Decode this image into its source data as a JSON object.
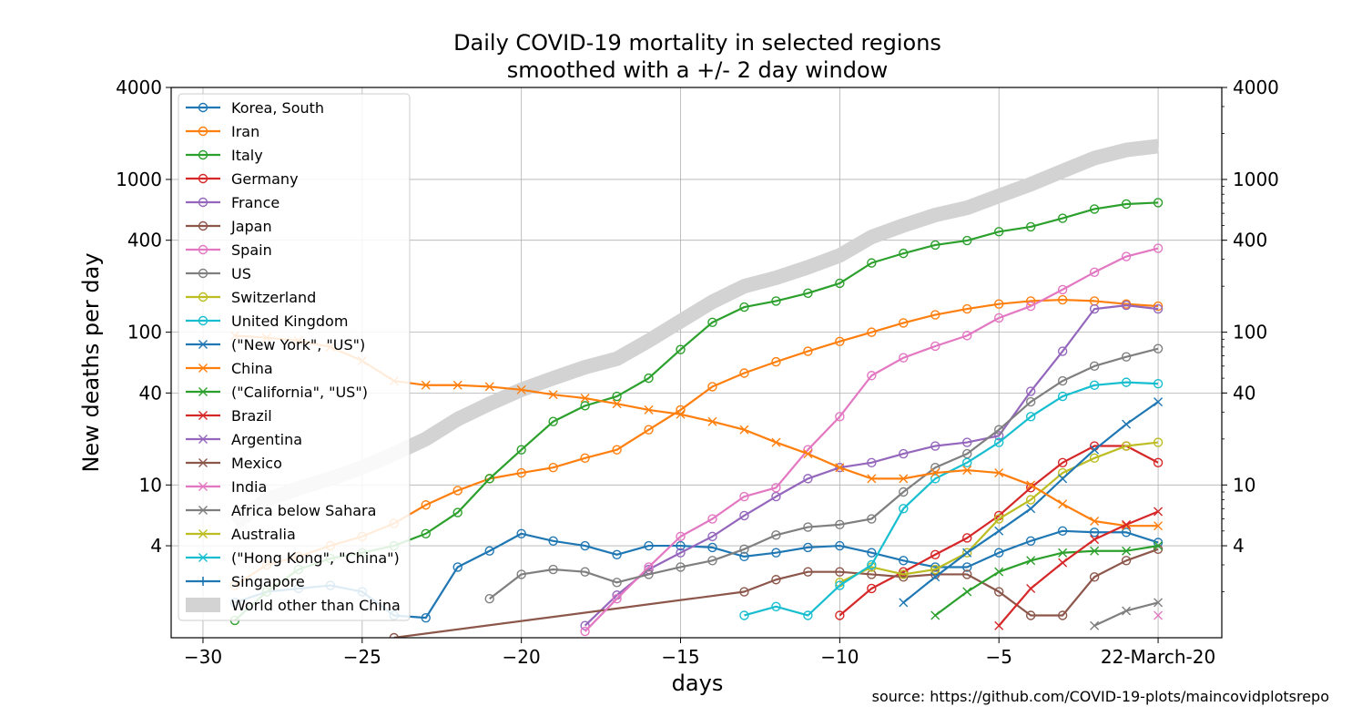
{
  "chart_data": {
    "type": "line",
    "title": "Daily COVID-19 mortality in selected regions",
    "subtitle": "smoothed with a +/- 2 day window",
    "xlabel": "days",
    "ylabel": "New deaths per day",
    "source": "source: https://github.com/COVID-19-plots/maincovidplotsrepo",
    "xlim": [
      -31,
      2
    ],
    "ylim": [
      1,
      4000
    ],
    "yscale": "log",
    "grid": true,
    "legend_placement": "upper-left",
    "x_ticks": [
      {
        "value": -30,
        "label": "−30"
      },
      {
        "value": -25,
        "label": "−25"
      },
      {
        "value": -20,
        "label": "−20"
      },
      {
        "value": -15,
        "label": "−15"
      },
      {
        "value": -10,
        "label": "−10"
      },
      {
        "value": -5,
        "label": "−5"
      },
      {
        "value": 0,
        "label": "22-March-20"
      }
    ],
    "y_ticks": [
      {
        "value": 4,
        "label": "4"
      },
      {
        "value": 10,
        "label": "10"
      },
      {
        "value": 40,
        "label": "40"
      },
      {
        "value": 100,
        "label": "100"
      },
      {
        "value": 400,
        "label": "400"
      },
      {
        "value": 1000,
        "label": "1000"
      },
      {
        "value": 4000,
        "label": "4000"
      }
    ],
    "series": [
      {
        "name": "Korea, South",
        "color": "#1f77b4",
        "marker": "circle",
        "x": [
          -29,
          -28,
          -27,
          -26,
          -25,
          -24,
          -23,
          -22,
          -21,
          -20,
          -19,
          -18,
          -17,
          -16,
          -15,
          -14,
          -13,
          -12,
          -11,
          -10,
          -9,
          -8,
          -7,
          -6,
          -5,
          -4,
          -3,
          -2,
          -1,
          0
        ],
        "y": [
          1.7,
          2.0,
          2.1,
          2.2,
          2.0,
          1.4,
          1.35,
          2.9,
          3.7,
          4.8,
          4.3,
          4.0,
          3.5,
          4.0,
          4.0,
          3.9,
          3.4,
          3.6,
          3.9,
          4.0,
          3.6,
          3.2,
          2.9,
          2.9,
          3.6,
          4.3,
          5.0,
          4.9,
          4.9,
          4.2
        ]
      },
      {
        "name": "Iran",
        "color": "#ff7f0e",
        "marker": "circle",
        "x": [
          -29,
          -28,
          -27,
          -26,
          -25,
          -24,
          -23,
          -22,
          -21,
          -20,
          -19,
          -18,
          -17,
          -16,
          -15,
          -14,
          -13,
          -12,
          -11,
          -10,
          -9,
          -8,
          -7,
          -6,
          -5,
          -4,
          -3,
          -2,
          -1,
          0
        ],
        "y": [
          2.2,
          3.0,
          3.4,
          4.0,
          4.6,
          5.6,
          7.4,
          9.2,
          11,
          12,
          13,
          15,
          17,
          23,
          31,
          44,
          54,
          64,
          75,
          87,
          100,
          115,
          130,
          142,
          153,
          160,
          163,
          160,
          153,
          148
        ]
      },
      {
        "name": "Italy",
        "color": "#2ca02c",
        "marker": "circle",
        "x": [
          -29,
          -28,
          -27,
          -26,
          -25,
          -24,
          -23,
          -22,
          -21,
          -20,
          -19,
          -18,
          -17,
          -16,
          -15,
          -14,
          -13,
          -12,
          -11,
          -10,
          -9,
          -8,
          -7,
          -6,
          -5,
          -4,
          -3,
          -2,
          -1,
          0
        ],
        "y": [
          1.3,
          2.0,
          2.8,
          3.3,
          3.6,
          4.0,
          4.8,
          6.6,
          11,
          17,
          26,
          33,
          38,
          50,
          77,
          116,
          146,
          160,
          180,
          209,
          284,
          328,
          372,
          398,
          455,
          490,
          557,
          640,
          690,
          705
        ]
      },
      {
        "name": "Germany",
        "color": "#d62728",
        "marker": "circle",
        "x": [
          -10,
          -9,
          -8,
          -7,
          -6,
          -5,
          -4,
          -3,
          -2,
          -1,
          0
        ],
        "y": [
          1.4,
          2.1,
          2.7,
          3.5,
          4.5,
          6.3,
          9.6,
          14,
          18,
          18,
          14
        ]
      },
      {
        "name": "France",
        "color": "#9467bd",
        "marker": "circle",
        "x": [
          -18,
          -17,
          -16,
          -15,
          -14,
          -13,
          -12,
          -11,
          -10,
          -9,
          -8,
          -7,
          -6,
          -5,
          -4,
          -3,
          -2,
          -1,
          0
        ],
        "y": [
          1.2,
          1.9,
          2.8,
          3.6,
          4.6,
          6.3,
          8.4,
          11,
          13,
          14,
          16,
          18,
          19,
          21,
          41,
          75,
          142,
          150,
          142
        ]
      },
      {
        "name": "Japan",
        "color": "#8c564b",
        "marker": "circle",
        "x": [
          -24,
          -13,
          -12,
          -11,
          -10,
          -9,
          -8,
          -7,
          -6,
          -5,
          -4,
          -3,
          -2,
          -1,
          0
        ],
        "y": [
          1.0,
          2.0,
          2.4,
          2.7,
          2.7,
          2.6,
          2.5,
          2.6,
          2.6,
          2.0,
          1.4,
          1.4,
          2.5,
          3.2,
          3.8
        ]
      },
      {
        "name": "Spain",
        "color": "#e377c2",
        "marker": "circle",
        "x": [
          -18,
          -17,
          -16,
          -15,
          -14,
          -13,
          -12,
          -11,
          -10,
          -9,
          -8,
          -7,
          -6,
          -5,
          -4,
          -3,
          -2,
          -1,
          0
        ],
        "y": [
          1.1,
          1.8,
          2.9,
          4.6,
          6.0,
          8.4,
          9.6,
          17,
          28,
          52,
          68,
          81,
          95,
          124,
          148,
          190,
          247,
          313,
          354
        ]
      },
      {
        "name": "US",
        "color": "#7f7f7f",
        "marker": "circle",
        "x": [
          -21,
          -20,
          -19,
          -18,
          -17,
          -16,
          -15,
          -14,
          -13,
          -12,
          -11,
          -10,
          -9,
          -8,
          -7,
          -6,
          -5,
          -4,
          -3,
          -2,
          -1,
          0
        ],
        "y": [
          1.8,
          2.6,
          2.8,
          2.7,
          2.3,
          2.6,
          2.9,
          3.2,
          3.8,
          4.7,
          5.3,
          5.5,
          6.0,
          9.0,
          13,
          16,
          23,
          35,
          48,
          60,
          69,
          78
        ]
      },
      {
        "name": "Switzerland",
        "color": "#bcbd22",
        "marker": "circle",
        "x": [
          -10,
          -9,
          -8,
          -7,
          -6,
          -5,
          -4,
          -3,
          -2,
          -1,
          0
        ],
        "y": [
          2.3,
          2.9,
          2.6,
          2.8,
          3.6,
          6,
          8,
          12,
          15,
          18,
          19
        ]
      },
      {
        "name": "United Kingdom",
        "color": "#17becf",
        "marker": "circle",
        "x": [
          -13,
          -12,
          -11,
          -10,
          -9,
          -8,
          -7,
          -6,
          -5,
          -4,
          -3,
          -2,
          -1,
          0
        ],
        "y": [
          1.4,
          1.6,
          1.4,
          2.2,
          3.0,
          7.0,
          11,
          14,
          19,
          28,
          38,
          45,
          47,
          46
        ]
      },
      {
        "name": "(\"New York\", \"US\")",
        "color": "#1f77b4",
        "marker": "x",
        "x": [
          -8,
          -7,
          -6,
          -5,
          -4,
          -3,
          -2,
          -1,
          0
        ],
        "y": [
          1.7,
          2.5,
          3.6,
          5.0,
          7.0,
          11,
          17,
          25,
          35
        ]
      },
      {
        "name": "China",
        "color": "#ff7f0e",
        "marker": "x",
        "x": [
          -29,
          -28,
          -27,
          -26,
          -25,
          -24,
          -23,
          -22,
          -21,
          -20,
          -19,
          -18,
          -17,
          -16,
          -15,
          -14,
          -13,
          -12,
          -11,
          -10,
          -9,
          -8,
          -7,
          -6,
          -5,
          -4,
          -3,
          -2,
          -1,
          0
        ],
        "y": [
          95,
          92,
          88,
          80,
          65,
          48,
          45,
          45,
          44,
          42,
          39,
          37,
          34,
          31,
          29,
          26,
          23,
          19,
          16,
          13,
          11,
          11,
          12,
          12.5,
          12,
          10,
          7.5,
          5.8,
          5.4,
          5.4
        ]
      },
      {
        "name": "(\"California\", \"US\")",
        "color": "#2ca02c",
        "marker": "x",
        "x": [
          -7,
          -6,
          -5,
          -4,
          -3,
          -2,
          -1,
          0
        ],
        "y": [
          1.4,
          2.0,
          2.7,
          3.2,
          3.6,
          3.7,
          3.7,
          4.0
        ]
      },
      {
        "name": "Brazil",
        "color": "#d62728",
        "marker": "x",
        "x": [
          -5,
          -4,
          -3,
          -2,
          -1,
          0
        ],
        "y": [
          1.2,
          2.1,
          3.1,
          4.4,
          5.5,
          6.7
        ]
      },
      {
        "name": "Argentina",
        "color": "#9467bd",
        "marker": "x",
        "x": [],
        "y": []
      },
      {
        "name": "Mexico",
        "color": "#8c564b",
        "marker": "x",
        "x": [],
        "y": []
      },
      {
        "name": "India",
        "color": "#e377c2",
        "marker": "x",
        "x": [
          0
        ],
        "y": [
          1.4
        ]
      },
      {
        "name": "Africa below Sahara",
        "color": "#7f7f7f",
        "marker": "x",
        "x": [
          -2,
          -1,
          0
        ],
        "y": [
          1.2,
          1.5,
          1.7
        ]
      },
      {
        "name": "Australia",
        "color": "#bcbd22",
        "marker": "x",
        "x": [],
        "y": []
      },
      {
        "name": "(\"Hong Kong\", \"China\")",
        "color": "#17becf",
        "marker": "x",
        "x": [],
        "y": []
      },
      {
        "name": "Singapore",
        "color": "#1f77b4",
        "marker": "plus",
        "x": [],
        "y": []
      },
      {
        "name": "World other than China",
        "color": "#d3d3d3",
        "marker": "none",
        "thick": true,
        "x": [
          -29,
          -28,
          -27,
          -26,
          -25,
          -24,
          -23,
          -22,
          -21,
          -20,
          -19,
          -18,
          -17,
          -16,
          -15,
          -14,
          -13,
          -12,
          -11,
          -10,
          -9,
          -8,
          -7,
          -6,
          -5,
          -4,
          -3,
          -2,
          -1,
          0
        ],
        "y": [
          5.6,
          8,
          9.5,
          11,
          13,
          16,
          20,
          27,
          34,
          42,
          50,
          59,
          67,
          88,
          118,
          158,
          200,
          227,
          266,
          318,
          420,
          500,
          585,
          652,
          780,
          930,
          1135,
          1380,
          1560,
          1650
        ]
      }
    ]
  }
}
